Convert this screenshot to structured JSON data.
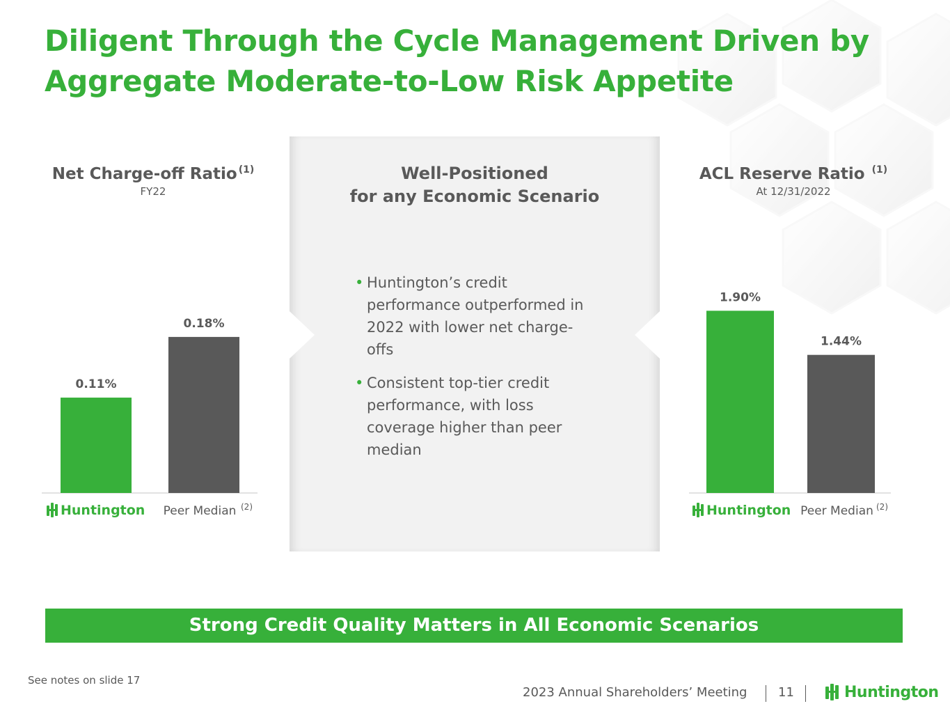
{
  "title": "Diligent Through the Cycle Management Driven by Aggregate Moderate-to-Low Risk Appetite",
  "left_chart": {
    "title": "Net Charge-off Ratio",
    "title_note": "(1)",
    "subtitle": "FY22",
    "category_note": "(2)"
  },
  "right_chart": {
    "title": "ACL Reserve Ratio",
    "title_note": "(1)",
    "subtitle": "At 12/31/2022",
    "category_note": "(2)"
  },
  "center": {
    "title_line1": "Well-Positioned",
    "title_line2": "for any Economic Scenario",
    "bullets": [
      "Huntington’s credit performance outperformed in 2022 with lower net charge-offs",
      "Consistent top-tier credit performance, with loss coverage higher than peer median"
    ]
  },
  "banner": "Strong Credit Quality Matters in All Economic Scenarios",
  "notes": "See notes on slide 17",
  "footer": {
    "meeting": "2023 Annual Shareholders’ Meeting",
    "page": "11",
    "logo_text": "Huntington"
  },
  "colors": {
    "green": "#37b03a",
    "gray": "#595959",
    "panel": "#f2f2f2"
  },
  "chart_data": [
    {
      "type": "bar",
      "title": "Net Charge-off Ratio",
      "subtitle": "FY22",
      "categories": [
        "Huntington",
        "Peer Median"
      ],
      "values": [
        0.11,
        0.18
      ],
      "data_labels": [
        "0.11%",
        "0.18%"
      ],
      "colors": [
        "#37b03a",
        "#595959"
      ],
      "ylim": [
        0,
        0.2
      ],
      "grid": false,
      "legend": "none"
    },
    {
      "type": "bar",
      "title": "ACL Reserve Ratio",
      "subtitle": "At 12/31/2022",
      "categories": [
        "Huntington",
        "Peer Median"
      ],
      "values": [
        1.9,
        1.44
      ],
      "data_labels": [
        "1.90%",
        "1.44%"
      ],
      "colors": [
        "#37b03a",
        "#595959"
      ],
      "ylim": [
        0,
        2.2
      ],
      "grid": false,
      "legend": "none"
    }
  ]
}
